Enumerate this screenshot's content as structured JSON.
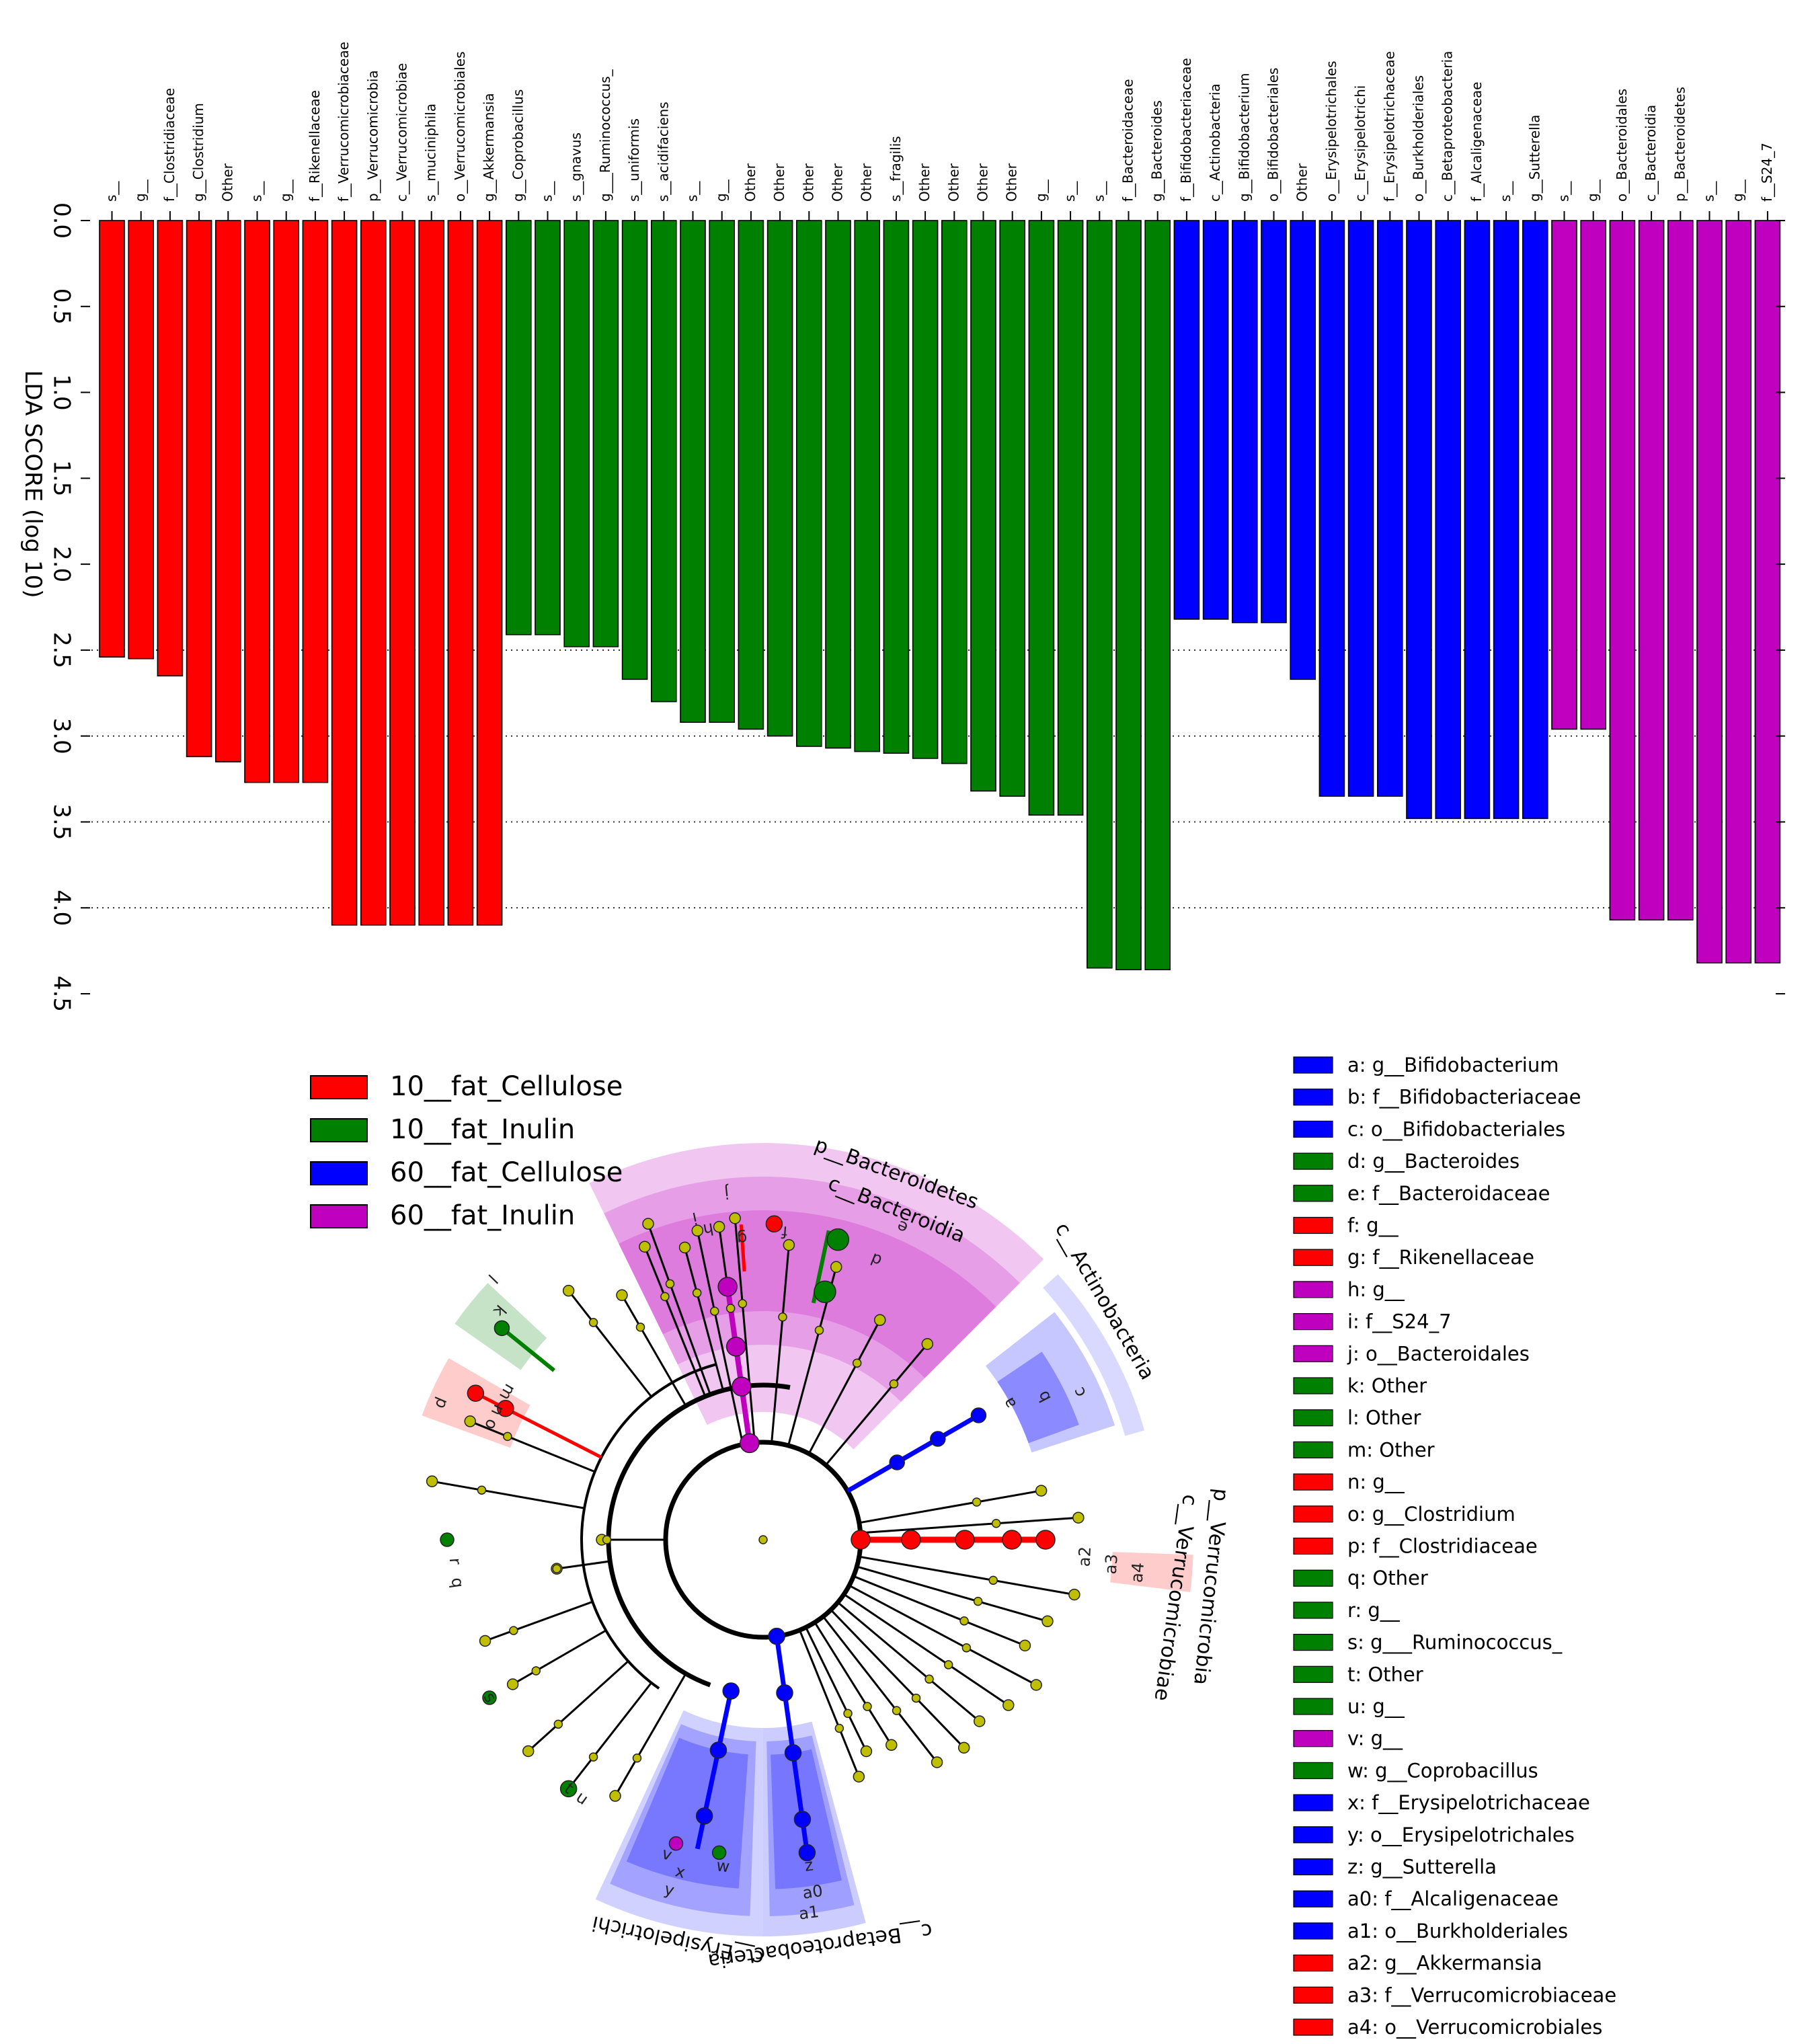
{
  "chart_data": [
    {
      "type": "bar",
      "ylabel": "LDA SCORE (log 10)",
      "ylim": [
        0,
        4.5
      ],
      "y_ticks": [
        "0.0",
        "0.5",
        "1.0",
        "1.5",
        "2.0",
        "2.5",
        "3.0",
        "3.5",
        "4.0",
        "4.5"
      ],
      "y_inverted": true,
      "grid": "dotted horizontal at 2.5, 3.0, 3.5, 4.0",
      "group_colors": {
        "10__fat_Cellulose": "#ff0000",
        "10__fat_Inulin": "#008000",
        "60__fat_Cellulose": "#0000ff",
        "60__fat_Inulin": "#bf00bf"
      },
      "bars": [
        {
          "label": "s__",
          "value": 2.54,
          "group": "10__fat_Cellulose"
        },
        {
          "label": "g__",
          "value": 2.55,
          "group": "10__fat_Cellulose"
        },
        {
          "label": "f__Clostridiaceae",
          "value": 2.65,
          "group": "10__fat_Cellulose"
        },
        {
          "label": "g__Clostridium",
          "value": 3.12,
          "group": "10__fat_Cellulose"
        },
        {
          "label": "Other",
          "value": 3.15,
          "group": "10__fat_Cellulose"
        },
        {
          "label": "s__",
          "value": 3.27,
          "group": "10__fat_Cellulose"
        },
        {
          "label": "g__",
          "value": 3.27,
          "group": "10__fat_Cellulose"
        },
        {
          "label": "f__Rikenellaceae",
          "value": 3.27,
          "group": "10__fat_Cellulose"
        },
        {
          "label": "f__Verrucomicrobiaceae",
          "value": 4.1,
          "group": "10__fat_Cellulose"
        },
        {
          "label": "p__Verrucomicrobia",
          "value": 4.1,
          "group": "10__fat_Cellulose"
        },
        {
          "label": "c__Verrucomicrobiae",
          "value": 4.1,
          "group": "10__fat_Cellulose"
        },
        {
          "label": "s__muciniphila",
          "value": 4.1,
          "group": "10__fat_Cellulose"
        },
        {
          "label": "o__Verrucomicrobiales",
          "value": 4.1,
          "group": "10__fat_Cellulose"
        },
        {
          "label": "g__Akkermansia",
          "value": 4.1,
          "group": "10__fat_Cellulose"
        },
        {
          "label": "g__Coprobacillus",
          "value": 2.41,
          "group": "10__fat_Inulin"
        },
        {
          "label": "s__",
          "value": 2.41,
          "group": "10__fat_Inulin"
        },
        {
          "label": "s__gnavus",
          "value": 2.48,
          "group": "10__fat_Inulin"
        },
        {
          "label": "g___Ruminococcus_",
          "value": 2.48,
          "group": "10__fat_Inulin"
        },
        {
          "label": "s__uniformis",
          "value": 2.67,
          "group": "10__fat_Inulin"
        },
        {
          "label": "s__acidifaciens",
          "value": 2.8,
          "group": "10__fat_Inulin"
        },
        {
          "label": "s__",
          "value": 2.92,
          "group": "10__fat_Inulin"
        },
        {
          "label": "g__",
          "value": 2.92,
          "group": "10__fat_Inulin"
        },
        {
          "label": "Other",
          "value": 2.96,
          "group": "10__fat_Inulin"
        },
        {
          "label": "Other",
          "value": 3.0,
          "group": "10__fat_Inulin"
        },
        {
          "label": "Other",
          "value": 3.06,
          "group": "10__fat_Inulin"
        },
        {
          "label": "Other",
          "value": 3.07,
          "group": "10__fat_Inulin"
        },
        {
          "label": "Other",
          "value": 3.09,
          "group": "10__fat_Inulin"
        },
        {
          "label": "s__fragilis",
          "value": 3.1,
          "group": "10__fat_Inulin"
        },
        {
          "label": "Other",
          "value": 3.13,
          "group": "10__fat_Inulin"
        },
        {
          "label": "Other",
          "value": 3.16,
          "group": "10__fat_Inulin"
        },
        {
          "label": "Other",
          "value": 3.32,
          "group": "10__fat_Inulin"
        },
        {
          "label": "Other",
          "value": 3.35,
          "group": "10__fat_Inulin"
        },
        {
          "label": "g__",
          "value": 3.46,
          "group": "10__fat_Inulin"
        },
        {
          "label": "s__",
          "value": 3.46,
          "group": "10__fat_Inulin"
        },
        {
          "label": "s__",
          "value": 4.35,
          "group": "10__fat_Inulin"
        },
        {
          "label": "f__Bacteroidaceae",
          "value": 4.36,
          "group": "10__fat_Inulin"
        },
        {
          "label": "g__Bacteroides",
          "value": 4.36,
          "group": "10__fat_Inulin"
        },
        {
          "label": "f__Bifidobacteriaceae",
          "value": 2.32,
          "group": "60__fat_Cellulose"
        },
        {
          "label": "c__Actinobacteria",
          "value": 2.32,
          "group": "60__fat_Cellulose"
        },
        {
          "label": "g__Bifidobacterium",
          "value": 2.34,
          "group": "60__fat_Cellulose"
        },
        {
          "label": "o__Bifidobacteriales",
          "value": 2.34,
          "group": "60__fat_Cellulose"
        },
        {
          "label": "Other",
          "value": 2.67,
          "group": "60__fat_Cellulose"
        },
        {
          "label": "o__Erysipelotrichales",
          "value": 3.35,
          "group": "60__fat_Cellulose"
        },
        {
          "label": "c__Erysipelotrichi",
          "value": 3.35,
          "group": "60__fat_Cellulose"
        },
        {
          "label": "f__Erysipelotrichaceae",
          "value": 3.35,
          "group": "60__fat_Cellulose"
        },
        {
          "label": "o__Burkholderiales",
          "value": 3.48,
          "group": "60__fat_Cellulose"
        },
        {
          "label": "c__Betaproteobacteria",
          "value": 3.48,
          "group": "60__fat_Cellulose"
        },
        {
          "label": "f__Alcaligenaceae",
          "value": 3.48,
          "group": "60__fat_Cellulose"
        },
        {
          "label": "s__",
          "value": 3.48,
          "group": "60__fat_Cellulose"
        },
        {
          "label": "g__Sutterella",
          "value": 3.48,
          "group": "60__fat_Cellulose"
        },
        {
          "label": "s__",
          "value": 2.96,
          "group": "60__fat_Inulin"
        },
        {
          "label": "g__",
          "value": 2.96,
          "group": "60__fat_Inulin"
        },
        {
          "label": "o__Bacteroidales",
          "value": 4.07,
          "group": "60__fat_Inulin"
        },
        {
          "label": "c__Bacteroidia",
          "value": 4.07,
          "group": "60__fat_Inulin"
        },
        {
          "label": "p__Bacteroidetes",
          "value": 4.07,
          "group": "60__fat_Inulin"
        },
        {
          "label": "s__",
          "value": 4.32,
          "group": "60__fat_Inulin"
        },
        {
          "label": "g__",
          "value": 4.32,
          "group": "60__fat_Inulin"
        },
        {
          "label": "f__S24_7",
          "value": 4.32,
          "group": "60__fat_Inulin"
        }
      ]
    },
    {
      "type": "cladogram",
      "legend": [
        {
          "name": "10__fat_Cellulose",
          "color": "#ff0000"
        },
        {
          "name": "10__fat_Inulin",
          "color": "#008000"
        },
        {
          "name": "60__fat_Cellulose",
          "color": "#0000ff"
        },
        {
          "name": "60__fat_Inulin",
          "color": "#bf00bf"
        }
      ],
      "clade_labels": [
        "p__Bacteroidetes",
        "c__Bacteroidia",
        "c__Actinobacteria",
        "p__Verrucomicrobia",
        "c__Verrucomicrobiae",
        "c__Betaproteobacteria",
        "c__Erysipelotrichi"
      ],
      "keys": [
        {
          "key": "a: g__Bifidobacterium",
          "color": "#0000ff"
        },
        {
          "key": "b: f__Bifidobacteriaceae",
          "color": "#0000ff"
        },
        {
          "key": "c: o__Bifidobacteriales",
          "color": "#0000ff"
        },
        {
          "key": "d: g__Bacteroides",
          "color": "#008000"
        },
        {
          "key": "e: f__Bacteroidaceae",
          "color": "#008000"
        },
        {
          "key": "f: g__",
          "color": "#ff0000"
        },
        {
          "key": "g: f__Rikenellaceae",
          "color": "#ff0000"
        },
        {
          "key": "h: g__",
          "color": "#bf00bf"
        },
        {
          "key": "i: f__S24_7",
          "color": "#bf00bf"
        },
        {
          "key": "j: o__Bacteroidales",
          "color": "#bf00bf"
        },
        {
          "key": "k: Other",
          "color": "#008000"
        },
        {
          "key": "l: Other",
          "color": "#008000"
        },
        {
          "key": "m: Other",
          "color": "#008000"
        },
        {
          "key": "n: g__",
          "color": "#ff0000"
        },
        {
          "key": "o: g__Clostridium",
          "color": "#ff0000"
        },
        {
          "key": "p: f__Clostridiaceae",
          "color": "#ff0000"
        },
        {
          "key": "q: Other",
          "color": "#008000"
        },
        {
          "key": "r: g__",
          "color": "#008000"
        },
        {
          "key": "s: g___Ruminococcus_",
          "color": "#008000"
        },
        {
          "key": "t: Other",
          "color": "#008000"
        },
        {
          "key": "u: g__",
          "color": "#008000"
        },
        {
          "key": "v: g__",
          "color": "#bf00bf"
        },
        {
          "key": "w: g__Coprobacillus",
          "color": "#008000"
        },
        {
          "key": "x: f__Erysipelotrichaceae",
          "color": "#0000ff"
        },
        {
          "key": "y: o__Erysipelotrichales",
          "color": "#0000ff"
        },
        {
          "key": "z: g__Sutterella",
          "color": "#0000ff"
        },
        {
          "key": "a0: f__Alcaligenaceae",
          "color": "#0000ff"
        },
        {
          "key": "a1: o__Burkholderiales",
          "color": "#0000ff"
        },
        {
          "key": "a2: g__Akkermansia",
          "color": "#ff0000"
        },
        {
          "key": "a3: f__Verrucomicrobiaceae",
          "color": "#ff0000"
        },
        {
          "key": "a4: o__Verrucomicrobiales",
          "color": "#ff0000"
        }
      ]
    }
  ]
}
